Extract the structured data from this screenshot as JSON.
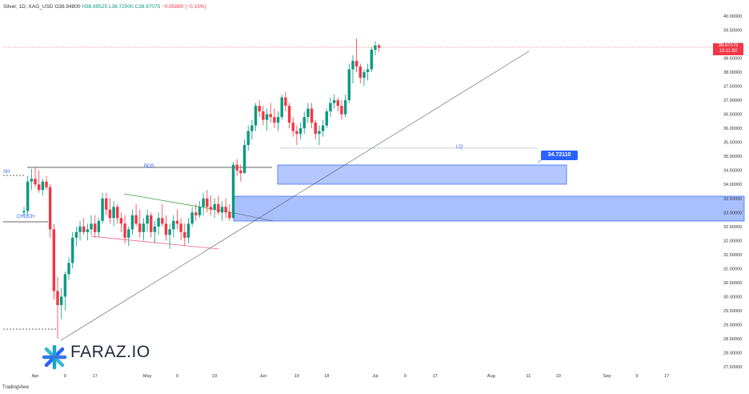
{
  "header": {
    "symbol": "Silver, 1D, XAG_USD",
    "open": "O38.94800",
    "high": "H38.99525",
    "low": "L38.72000",
    "close": "C38.87075",
    "change": "−0.05880 (−0.15%)"
  },
  "price_tag": {
    "value": "38.87075",
    "countdown": "13:11:50"
  },
  "brand": {
    "name": "FARAZ.IO",
    "footer": "TradingView"
  },
  "annotations": {
    "bos": "BOS",
    "lq": "LQ",
    "sh": "SH",
    "choch": "CHOCH",
    "zone_price": "34.72110"
  },
  "colors": {
    "up": "#089981",
    "down": "#f23645",
    "zone": "#2962ff",
    "wedge_upper": "#43a047",
    "wedge_lower": "#f06292"
  },
  "chart_data": {
    "type": "candlestick",
    "y_axis": {
      "range": [
        27.3,
        40.15
      ],
      "ticks": [
        "40.00000",
        "39.50000",
        "39.00000",
        "38.50000",
        "38.00000",
        "37.50000",
        "37.00000",
        "36.50000",
        "36.00000",
        "35.50000",
        "35.00000",
        "34.50000",
        "34.00000",
        "33.50000",
        "33.00000",
        "32.50000",
        "32.00000",
        "31.50000",
        "31.00000",
        "30.50000",
        "30.00000",
        "29.50000",
        "29.00000",
        "28.50000",
        "28.00000",
        "27.50000"
      ]
    },
    "x_axis": {
      "ticks": [
        {
          "label": "Apr",
          "day": 0
        },
        {
          "label": "9",
          "day": 8
        },
        {
          "label": "17",
          "day": 16
        },
        {
          "label": "May",
          "day": 30
        },
        {
          "label": "9",
          "day": 38
        },
        {
          "label": "19",
          "day": 48
        },
        {
          "label": "Jun",
          "day": 61
        },
        {
          "label": "10",
          "day": 70
        },
        {
          "label": "18",
          "day": 78
        },
        {
          "label": "Jul",
          "day": 91
        },
        {
          "label": "9",
          "day": 99
        },
        {
          "label": "17",
          "day": 107
        },
        {
          "label": "Aug",
          "day": 122
        },
        {
          "label": "11",
          "day": 132
        },
        {
          "label": "19",
          "day": 140
        },
        {
          "label": "Sep",
          "day": 153
        },
        {
          "label": "9",
          "day": 161
        },
        {
          "label": "17",
          "day": 169
        }
      ]
    },
    "candles": [
      {
        "d": -3,
        "o": 33.0,
        "h": 33.2,
        "l": 32.9,
        "c": 33.05
      },
      {
        "d": -2,
        "o": 33.05,
        "h": 34.3,
        "l": 32.9,
        "c": 34.1
      },
      {
        "d": -1,
        "o": 34.1,
        "h": 34.55,
        "l": 33.8,
        "c": 34.2
      },
      {
        "d": 0,
        "o": 34.2,
        "h": 34.6,
        "l": 33.9,
        "c": 34.0
      },
      {
        "d": 1,
        "o": 34.0,
        "h": 34.5,
        "l": 33.7,
        "c": 33.8
      },
      {
        "d": 2,
        "o": 33.8,
        "h": 34.2,
        "l": 33.6,
        "c": 34.1
      },
      {
        "d": 3,
        "o": 34.1,
        "h": 34.3,
        "l": 33.8,
        "c": 33.9
      },
      {
        "d": 4,
        "o": 33.9,
        "h": 34.0,
        "l": 32.1,
        "c": 32.4
      },
      {
        "d": 5,
        "o": 32.4,
        "h": 32.6,
        "l": 29.9,
        "c": 30.2
      },
      {
        "d": 6,
        "o": 30.2,
        "h": 30.7,
        "l": 28.5,
        "c": 29.7
      },
      {
        "d": 7,
        "o": 29.7,
        "h": 30.3,
        "l": 29.2,
        "c": 30.0
      },
      {
        "d": 8,
        "o": 30.0,
        "h": 30.9,
        "l": 29.5,
        "c": 30.8
      },
      {
        "d": 9,
        "o": 30.8,
        "h": 31.4,
        "l": 30.6,
        "c": 31.2
      },
      {
        "d": 10,
        "o": 31.2,
        "h": 32.3,
        "l": 31.0,
        "c": 32.1
      },
      {
        "d": 11,
        "o": 32.1,
        "h": 32.5,
        "l": 31.8,
        "c": 32.3
      },
      {
        "d": 12,
        "o": 32.3,
        "h": 32.7,
        "l": 32.0,
        "c": 32.5
      },
      {
        "d": 13,
        "o": 32.5,
        "h": 32.8,
        "l": 32.2,
        "c": 32.3
      },
      {
        "d": 14,
        "o": 32.3,
        "h": 32.6,
        "l": 32.0,
        "c": 32.4
      },
      {
        "d": 15,
        "o": 32.4,
        "h": 32.9,
        "l": 32.2,
        "c": 32.6
      },
      {
        "d": 16,
        "o": 32.6,
        "h": 32.9,
        "l": 32.1,
        "c": 32.3
      },
      {
        "d": 17,
        "o": 32.3,
        "h": 32.8,
        "l": 32.1,
        "c": 32.7
      },
      {
        "d": 18,
        "o": 32.7,
        "h": 33.7,
        "l": 32.6,
        "c": 33.5
      },
      {
        "d": 19,
        "o": 33.5,
        "h": 33.7,
        "l": 32.9,
        "c": 33.1
      },
      {
        "d": 20,
        "o": 33.1,
        "h": 33.5,
        "l": 32.6,
        "c": 32.8
      },
      {
        "d": 21,
        "o": 32.8,
        "h": 33.4,
        "l": 32.5,
        "c": 33.2
      },
      {
        "d": 22,
        "o": 33.2,
        "h": 33.3,
        "l": 32.6,
        "c": 32.8
      },
      {
        "d": 23,
        "o": 32.8,
        "h": 33.0,
        "l": 32.3,
        "c": 32.6
      },
      {
        "d": 24,
        "o": 32.6,
        "h": 32.9,
        "l": 31.9,
        "c": 32.1
      },
      {
        "d": 25,
        "o": 32.1,
        "h": 32.5,
        "l": 31.8,
        "c": 32.4
      },
      {
        "d": 26,
        "o": 32.4,
        "h": 33.1,
        "l": 32.2,
        "c": 32.9
      },
      {
        "d": 27,
        "o": 32.9,
        "h": 33.3,
        "l": 32.5,
        "c": 32.6
      },
      {
        "d": 28,
        "o": 32.6,
        "h": 33.1,
        "l": 32.1,
        "c": 32.3
      },
      {
        "d": 29,
        "o": 32.3,
        "h": 32.8,
        "l": 32.0,
        "c": 32.6
      },
      {
        "d": 30,
        "o": 32.6,
        "h": 33.1,
        "l": 32.3,
        "c": 32.9
      },
      {
        "d": 31,
        "o": 32.9,
        "h": 33.0,
        "l": 32.1,
        "c": 32.3
      },
      {
        "d": 32,
        "o": 32.3,
        "h": 32.7,
        "l": 31.9,
        "c": 32.5
      },
      {
        "d": 33,
        "o": 32.5,
        "h": 33.0,
        "l": 32.2,
        "c": 32.8
      },
      {
        "d": 34,
        "o": 32.8,
        "h": 33.3,
        "l": 32.5,
        "c": 32.6
      },
      {
        "d": 35,
        "o": 32.6,
        "h": 32.9,
        "l": 32.0,
        "c": 32.2
      },
      {
        "d": 36,
        "o": 32.2,
        "h": 32.6,
        "l": 31.7,
        "c": 32.4
      },
      {
        "d": 37,
        "o": 32.4,
        "h": 32.9,
        "l": 32.1,
        "c": 32.7
      },
      {
        "d": 38,
        "o": 32.7,
        "h": 33.1,
        "l": 32.4,
        "c": 32.6
      },
      {
        "d": 39,
        "o": 32.6,
        "h": 32.8,
        "l": 32.0,
        "c": 32.3
      },
      {
        "d": 40,
        "o": 32.3,
        "h": 32.6,
        "l": 31.8,
        "c": 32.1
      },
      {
        "d": 41,
        "o": 32.1,
        "h": 32.8,
        "l": 31.9,
        "c": 32.6
      },
      {
        "d": 42,
        "o": 32.6,
        "h": 33.2,
        "l": 32.5,
        "c": 33.0
      },
      {
        "d": 43,
        "o": 33.0,
        "h": 33.3,
        "l": 32.7,
        "c": 32.9
      },
      {
        "d": 44,
        "o": 32.9,
        "h": 33.4,
        "l": 32.8,
        "c": 33.2
      },
      {
        "d": 45,
        "o": 33.2,
        "h": 33.7,
        "l": 32.9,
        "c": 33.5
      },
      {
        "d": 46,
        "o": 33.5,
        "h": 33.8,
        "l": 33.0,
        "c": 33.2
      },
      {
        "d": 47,
        "o": 33.2,
        "h": 33.6,
        "l": 32.9,
        "c": 33.1
      },
      {
        "d": 48,
        "o": 33.1,
        "h": 33.5,
        "l": 32.8,
        "c": 33.3
      },
      {
        "d": 49,
        "o": 33.3,
        "h": 33.6,
        "l": 32.9,
        "c": 33.0
      },
      {
        "d": 50,
        "o": 33.0,
        "h": 33.4,
        "l": 32.7,
        "c": 33.2
      },
      {
        "d": 51,
        "o": 33.2,
        "h": 33.5,
        "l": 32.8,
        "c": 33.0
      },
      {
        "d": 52,
        "o": 33.0,
        "h": 33.3,
        "l": 32.7,
        "c": 32.8
      },
      {
        "d": 53,
        "o": 32.8,
        "h": 34.8,
        "l": 32.8,
        "c": 34.7
      },
      {
        "d": 54,
        "o": 34.7,
        "h": 34.9,
        "l": 34.3,
        "c": 34.5
      },
      {
        "d": 55,
        "o": 34.5,
        "h": 34.7,
        "l": 34.1,
        "c": 34.4
      },
      {
        "d": 56,
        "o": 34.4,
        "h": 35.6,
        "l": 34.4,
        "c": 35.4
      },
      {
        "d": 57,
        "o": 35.4,
        "h": 36.1,
        "l": 35.2,
        "c": 35.9
      },
      {
        "d": 58,
        "o": 35.9,
        "h": 36.3,
        "l": 35.6,
        "c": 36.1
      },
      {
        "d": 59,
        "o": 36.1,
        "h": 36.9,
        "l": 35.9,
        "c": 36.8
      },
      {
        "d": 60,
        "o": 36.8,
        "h": 37.0,
        "l": 36.4,
        "c": 36.6
      },
      {
        "d": 61,
        "o": 36.6,
        "h": 36.8,
        "l": 36.1,
        "c": 36.3
      },
      {
        "d": 62,
        "o": 36.3,
        "h": 36.7,
        "l": 35.9,
        "c": 36.5
      },
      {
        "d": 63,
        "o": 36.5,
        "h": 36.9,
        "l": 36.2,
        "c": 36.4
      },
      {
        "d": 64,
        "o": 36.4,
        "h": 36.7,
        "l": 36.0,
        "c": 36.2
      },
      {
        "d": 65,
        "o": 36.2,
        "h": 36.6,
        "l": 35.9,
        "c": 36.4
      },
      {
        "d": 66,
        "o": 36.4,
        "h": 37.2,
        "l": 36.3,
        "c": 37.1
      },
      {
        "d": 67,
        "o": 37.1,
        "h": 37.3,
        "l": 36.6,
        "c": 36.8
      },
      {
        "d": 68,
        "o": 36.8,
        "h": 36.9,
        "l": 36.0,
        "c": 36.2
      },
      {
        "d": 69,
        "o": 36.2,
        "h": 36.4,
        "l": 35.7,
        "c": 35.9
      },
      {
        "d": 70,
        "o": 35.9,
        "h": 36.1,
        "l": 35.4,
        "c": 35.8
      },
      {
        "d": 71,
        "o": 35.8,
        "h": 36.2,
        "l": 35.6,
        "c": 36.0
      },
      {
        "d": 72,
        "o": 36.0,
        "h": 36.6,
        "l": 35.8,
        "c": 36.4
      },
      {
        "d": 73,
        "o": 36.4,
        "h": 36.9,
        "l": 36.2,
        "c": 36.7
      },
      {
        "d": 74,
        "o": 36.7,
        "h": 36.9,
        "l": 36.0,
        "c": 36.2
      },
      {
        "d": 75,
        "o": 36.2,
        "h": 36.3,
        "l": 35.6,
        "c": 35.8
      },
      {
        "d": 76,
        "o": 35.8,
        "h": 36.1,
        "l": 35.4,
        "c": 35.9
      },
      {
        "d": 77,
        "o": 35.9,
        "h": 36.3,
        "l": 35.7,
        "c": 36.1
      },
      {
        "d": 78,
        "o": 36.1,
        "h": 36.7,
        "l": 36.0,
        "c": 36.6
      },
      {
        "d": 79,
        "o": 36.6,
        "h": 37.1,
        "l": 36.4,
        "c": 36.9
      },
      {
        "d": 80,
        "o": 36.9,
        "h": 37.2,
        "l": 36.7,
        "c": 37.0
      },
      {
        "d": 81,
        "o": 37.0,
        "h": 37.1,
        "l": 36.6,
        "c": 36.8
      },
      {
        "d": 82,
        "o": 36.8,
        "h": 37.0,
        "l": 36.3,
        "c": 36.5
      },
      {
        "d": 83,
        "o": 36.5,
        "h": 37.2,
        "l": 36.4,
        "c": 37.0
      },
      {
        "d": 84,
        "o": 37.0,
        "h": 38.3,
        "l": 36.9,
        "c": 38.1
      },
      {
        "d": 85,
        "o": 38.1,
        "h": 38.6,
        "l": 37.6,
        "c": 38.4
      },
      {
        "d": 86,
        "o": 38.4,
        "h": 39.2,
        "l": 38.0,
        "c": 38.2
      },
      {
        "d": 87,
        "o": 38.2,
        "h": 38.3,
        "l": 37.6,
        "c": 37.8
      },
      {
        "d": 88,
        "o": 37.8,
        "h": 38.1,
        "l": 37.5,
        "c": 38.0
      },
      {
        "d": 89,
        "o": 38.0,
        "h": 38.3,
        "l": 37.7,
        "c": 38.1
      },
      {
        "d": 90,
        "o": 38.1,
        "h": 38.9,
        "l": 38.0,
        "c": 38.8
      },
      {
        "d": 91,
        "o": 38.8,
        "h": 39.1,
        "l": 38.6,
        "c": 38.95
      },
      {
        "d": 92,
        "o": 38.95,
        "h": 39.0,
        "l": 38.72,
        "c": 38.87
      }
    ]
  }
}
